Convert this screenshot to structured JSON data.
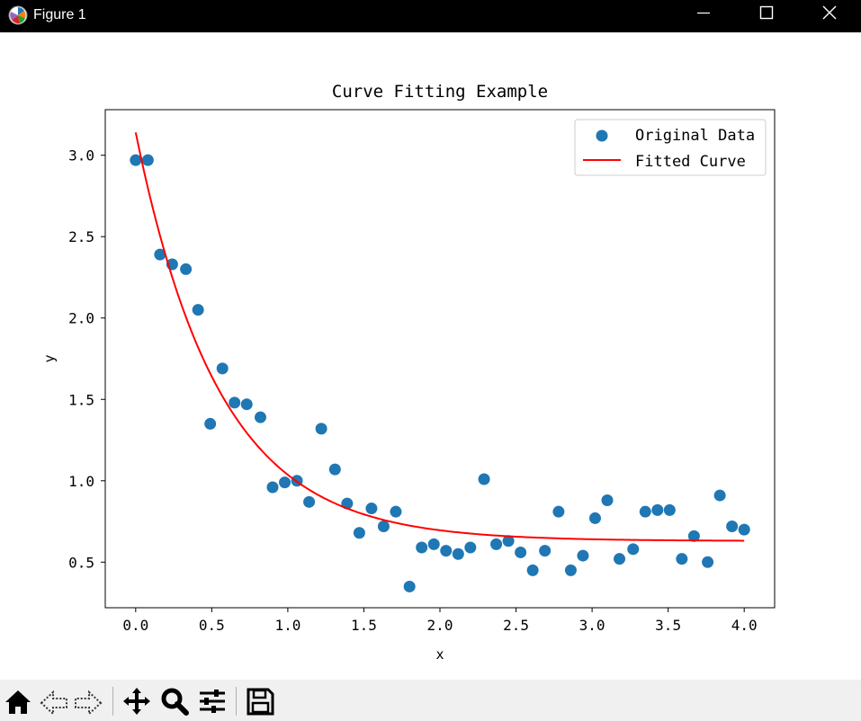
{
  "window": {
    "title": "Figure 1",
    "icons": {
      "app": "matplotlib-logo-icon",
      "minimize": "minimize-icon",
      "maximize": "maximize-icon",
      "close": "close-icon"
    }
  },
  "toolbar": {
    "buttons": [
      {
        "name": "home",
        "icon": "home-icon"
      },
      {
        "name": "back",
        "icon": "back-arrow-icon"
      },
      {
        "name": "forward",
        "icon": "forward-arrow-icon"
      },
      {
        "name": "pan",
        "icon": "move-icon"
      },
      {
        "name": "zoom",
        "icon": "zoom-icon"
      },
      {
        "name": "configure-subplots",
        "icon": "sliders-icon"
      },
      {
        "name": "save",
        "icon": "save-icon"
      }
    ]
  },
  "colors": {
    "scatter": "#1f77b4",
    "fit": "#ff0000",
    "axes": "#000000"
  },
  "chart_data": {
    "type": "scatter",
    "title": "Curve Fitting Example",
    "xlabel": "x",
    "ylabel": "y",
    "xlim": [
      -0.2,
      4.2
    ],
    "ylim": [
      0.22,
      3.28
    ],
    "xticks": [
      0.0,
      0.5,
      1.0,
      1.5,
      2.0,
      2.5,
      3.0,
      3.5,
      4.0
    ],
    "xtick_labels": [
      "0.0",
      "0.5",
      "1.0",
      "1.5",
      "2.0",
      "2.5",
      "3.0",
      "3.5",
      "4.0"
    ],
    "yticks": [
      0.5,
      1.0,
      1.5,
      2.0,
      2.5,
      3.0
    ],
    "ytick_labels": [
      "0.5",
      "1.0",
      "1.5",
      "2.0",
      "2.5",
      "3.0"
    ],
    "grid": false,
    "legend_position": "top-right",
    "series": [
      {
        "name": "Original Data",
        "kind": "scatter",
        "color": "#1f77b4",
        "points": [
          [
            0.0,
            2.97
          ],
          [
            0.08,
            2.97
          ],
          [
            0.16,
            2.39
          ],
          [
            0.24,
            2.33
          ],
          [
            0.33,
            2.3
          ],
          [
            0.41,
            2.05
          ],
          [
            0.49,
            1.35
          ],
          [
            0.57,
            1.69
          ],
          [
            0.65,
            1.48
          ],
          [
            0.73,
            1.47
          ],
          [
            0.82,
            1.39
          ],
          [
            0.9,
            0.96
          ],
          [
            0.98,
            0.99
          ],
          [
            1.06,
            1.0
          ],
          [
            1.14,
            0.87
          ],
          [
            1.22,
            1.32
          ],
          [
            1.31,
            1.07
          ],
          [
            1.39,
            0.86
          ],
          [
            1.47,
            0.68
          ],
          [
            1.55,
            0.83
          ],
          [
            1.63,
            0.72
          ],
          [
            1.71,
            0.81
          ],
          [
            1.8,
            0.35
          ],
          [
            1.88,
            0.59
          ],
          [
            1.96,
            0.61
          ],
          [
            2.04,
            0.57
          ],
          [
            2.12,
            0.55
          ],
          [
            2.2,
            0.59
          ],
          [
            2.29,
            1.01
          ],
          [
            2.37,
            0.61
          ],
          [
            2.45,
            0.63
          ],
          [
            2.53,
            0.56
          ],
          [
            2.61,
            0.45
          ],
          [
            2.69,
            0.57
          ],
          [
            2.78,
            0.81
          ],
          [
            2.86,
            0.45
          ],
          [
            2.94,
            0.54
          ],
          [
            3.02,
            0.77
          ],
          [
            3.1,
            0.88
          ],
          [
            3.18,
            0.52
          ],
          [
            3.27,
            0.58
          ],
          [
            3.35,
            0.81
          ],
          [
            3.43,
            0.82
          ],
          [
            3.51,
            0.82
          ],
          [
            3.59,
            0.52
          ],
          [
            3.67,
            0.66
          ],
          [
            3.76,
            0.5
          ],
          [
            3.84,
            0.91
          ],
          [
            3.92,
            0.72
          ],
          [
            4.0,
            0.7
          ]
        ]
      },
      {
        "name": "Fitted Curve",
        "kind": "line",
        "color": "#ff0000",
        "model": "a*exp(-b*x)+c",
        "params": {
          "a": 2.51,
          "b": 1.82,
          "c": 0.63
        },
        "x_range": [
          0.0,
          4.0
        ]
      }
    ]
  }
}
